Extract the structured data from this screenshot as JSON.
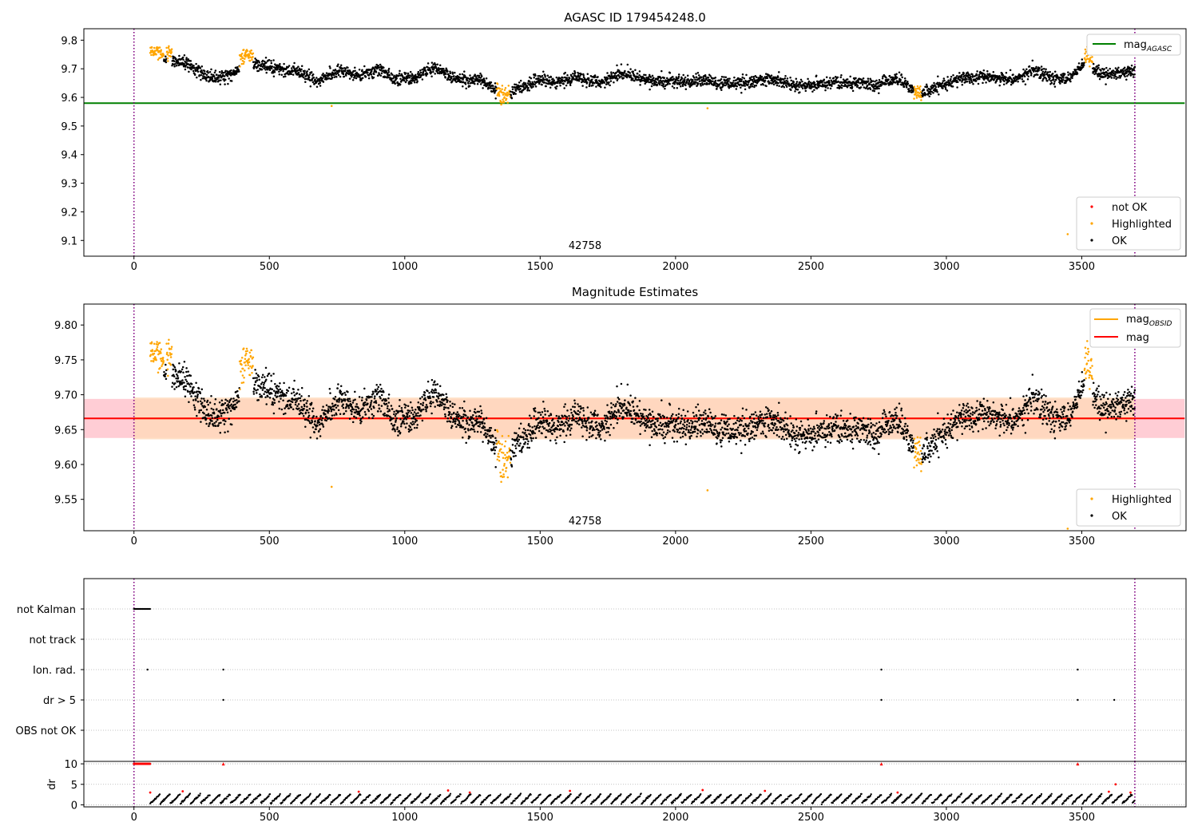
{
  "colors": {
    "ok": "#000000",
    "highlighted": "#ffa500",
    "not_ok": "#ff0000",
    "agasc_line": "#008000",
    "mag_line": "#ff0000",
    "obsid_line": "#ffa500",
    "band_mag": "#ffc0cb",
    "band_obsid": "#ffdab9",
    "obs_boundary": "#800080",
    "grid": "#b0b0b0"
  },
  "chart_data": [
    {
      "id": "agasc",
      "type": "scatter",
      "title": "AGASC ID 179454248.0",
      "xlim": [
        -185,
        3885
      ],
      "ylim": [
        9.045,
        9.84
      ],
      "xticks": [
        0,
        500,
        1000,
        1500,
        2000,
        2500,
        3000,
        3500,
        4000
      ],
      "yticks": [
        9.1,
        9.2,
        9.3,
        9.4,
        9.5,
        9.6,
        9.7,
        9.8
      ],
      "ytick_labels": [
        "9.1",
        "9.2",
        "9.3",
        "9.4",
        "9.5",
        "9.6",
        "9.7",
        "9.8"
      ],
      "obsid_label": "42758",
      "obs_boundaries": [
        0,
        3696
      ],
      "hlines": [
        {
          "name": "mag_AGASC",
          "value": 9.58,
          "xmax": 3880,
          "color": "agasc_line"
        }
      ],
      "legend_lines": [
        {
          "label": "mag",
          "sub": "AGASC",
          "color": "agasc_line"
        }
      ],
      "legend_points": [
        {
          "label": "not OK",
          "color": "not_ok"
        },
        {
          "label": "Highlighted",
          "color": "highlighted"
        },
        {
          "label": "OK",
          "color": "ok"
        }
      ],
      "outliers": [
        {
          "x": 730,
          "y": 9.57,
          "cls": "highlighted"
        },
        {
          "x": 2118,
          "y": 9.562,
          "cls": "highlighted"
        },
        {
          "x": 3448,
          "y": 9.122,
          "cls": "highlighted"
        }
      ],
      "series_model": {
        "x_start": 60,
        "x_end": 3696,
        "n_points": 3600,
        "noise": 0.011,
        "curve": [
          [
            60,
            9.735
          ],
          [
            200,
            9.72
          ],
          [
            280,
            9.665
          ],
          [
            350,
            9.675
          ],
          [
            420,
            9.725
          ],
          [
            520,
            9.7
          ],
          [
            600,
            9.69
          ],
          [
            680,
            9.655
          ],
          [
            760,
            9.695
          ],
          [
            830,
            9.675
          ],
          [
            900,
            9.7
          ],
          [
            960,
            9.665
          ],
          [
            1040,
            9.67
          ],
          [
            1110,
            9.705
          ],
          [
            1180,
            9.665
          ],
          [
            1280,
            9.66
          ],
          [
            1360,
            9.608
          ],
          [
            1400,
            9.625
          ],
          [
            1500,
            9.66
          ],
          [
            1560,
            9.65
          ],
          [
            1640,
            9.67
          ],
          [
            1720,
            9.65
          ],
          [
            1800,
            9.685
          ],
          [
            1900,
            9.66
          ],
          [
            2000,
            9.655
          ],
          [
            2100,
            9.66
          ],
          [
            2200,
            9.645
          ],
          [
            2350,
            9.665
          ],
          [
            2450,
            9.64
          ],
          [
            2550,
            9.65
          ],
          [
            2650,
            9.65
          ],
          [
            2750,
            9.645
          ],
          [
            2820,
            9.665
          ],
          [
            2900,
            9.61
          ],
          [
            2960,
            9.635
          ],
          [
            3050,
            9.665
          ],
          [
            3150,
            9.675
          ],
          [
            3250,
            9.66
          ],
          [
            3320,
            9.695
          ],
          [
            3400,
            9.665
          ],
          [
            3450,
            9.665
          ],
          [
            3520,
            9.725
          ],
          [
            3560,
            9.685
          ],
          [
            3640,
            9.685
          ],
          [
            3696,
            9.69
          ]
        ],
        "highlight_windows": [
          [
            60,
            110
          ],
          [
            120,
            140
          ],
          [
            390,
            440
          ],
          [
            1340,
            1390
          ],
          [
            2880,
            2910
          ],
          [
            3510,
            3540
          ]
        ]
      }
    },
    {
      "id": "mag",
      "type": "scatter",
      "title": "Magnitude Estimates",
      "xlim": [
        -185,
        3885
      ],
      "ylim": [
        9.505,
        9.83
      ],
      "xticks": [
        0,
        500,
        1000,
        1500,
        2000,
        2500,
        3000,
        3500,
        4000
      ],
      "yticks": [
        9.55,
        9.6,
        9.65,
        9.7,
        9.75,
        9.8
      ],
      "ytick_labels": [
        "9.55",
        "9.60",
        "9.65",
        "9.70",
        "9.75",
        "9.80"
      ],
      "obsid_label": "42758",
      "obs_boundaries": [
        0,
        3696
      ],
      "bands": [
        {
          "name": "mag_band",
          "ymin": 9.638,
          "ymax": 9.694,
          "xmin": -185,
          "xmax": 3880,
          "color": "band_mag"
        },
        {
          "name": "obsid_band",
          "ymin": 9.636,
          "ymax": 9.696,
          "xmin": 0,
          "xmax": 3696,
          "color": "band_obsid"
        }
      ],
      "hlines": [
        {
          "name": "mag_OBSID",
          "value": 9.666,
          "xmin": 0,
          "xmax": 3696,
          "color": "obsid_line"
        },
        {
          "name": "mag",
          "value": 9.666,
          "xmin": -185,
          "xmax": 3880,
          "color": "mag_line"
        }
      ],
      "legend_lines": [
        {
          "label": "mag",
          "sub": "OBSID",
          "color": "obsid_line"
        },
        {
          "label": "mag",
          "sub": "",
          "color": "mag_line"
        }
      ],
      "legend_points": [
        {
          "label": "Highlighted",
          "color": "highlighted"
        },
        {
          "label": "OK",
          "color": "ok"
        }
      ],
      "outliers": [
        {
          "x": 730,
          "y": 9.568,
          "cls": "highlighted"
        },
        {
          "x": 2118,
          "y": 9.563,
          "cls": "highlighted"
        },
        {
          "x": 3448,
          "y": 9.508,
          "cls": "highlighted"
        }
      ]
    },
    {
      "id": "flags",
      "type": "scatter",
      "xlim": [
        -185,
        3885
      ],
      "obs_boundaries": [
        0,
        3696
      ],
      "categories": [
        "not Kalman",
        "not track",
        "Ion. rad.",
        "dr > 5",
        "OBS not OK"
      ],
      "flag_points": {
        "not Kalman": {
          "ranges": [
            [
              0,
              60
            ]
          ],
          "points": []
        },
        "not track": {
          "ranges": [],
          "points": []
        },
        "Ion. rad.": {
          "ranges": [],
          "points": [
            50,
            330,
            2760,
            3485
          ]
        },
        "dr > 5": {
          "ranges": [],
          "points": [
            330,
            2760,
            3485,
            3620
          ]
        },
        "OBS not OK": {
          "ranges": [],
          "points": []
        }
      }
    },
    {
      "id": "dr",
      "type": "scatter",
      "ylabel": "dr",
      "xlim": [
        -185,
        3885
      ],
      "ylim": [
        -0.5,
        10.6
      ],
      "xticks": [
        0,
        500,
        1000,
        1500,
        2000,
        2500,
        3000,
        3500,
        4000
      ],
      "yticks": [
        0,
        5,
        10
      ],
      "ytick_labels": [
        "0",
        "5",
        "10"
      ],
      "obs_boundaries": [
        0,
        3696
      ],
      "saturated_value": 10,
      "red_saturated": {
        "ranges": [
          [
            0,
            60
          ]
        ],
        "points": [
          330,
          2760,
          3485
        ]
      },
      "red_points": [
        [
          60,
          3.0
        ],
        [
          180,
          3.3
        ],
        [
          830,
          3.2
        ],
        [
          1160,
          3.5
        ],
        [
          1240,
          3.0
        ],
        [
          1610,
          3.4
        ],
        [
          2100,
          3.6
        ],
        [
          2330,
          3.4
        ],
        [
          2820,
          3.0
        ],
        [
          3600,
          3.2
        ],
        [
          3625,
          5.0
        ],
        [
          3680,
          3.0
        ]
      ]
    }
  ]
}
